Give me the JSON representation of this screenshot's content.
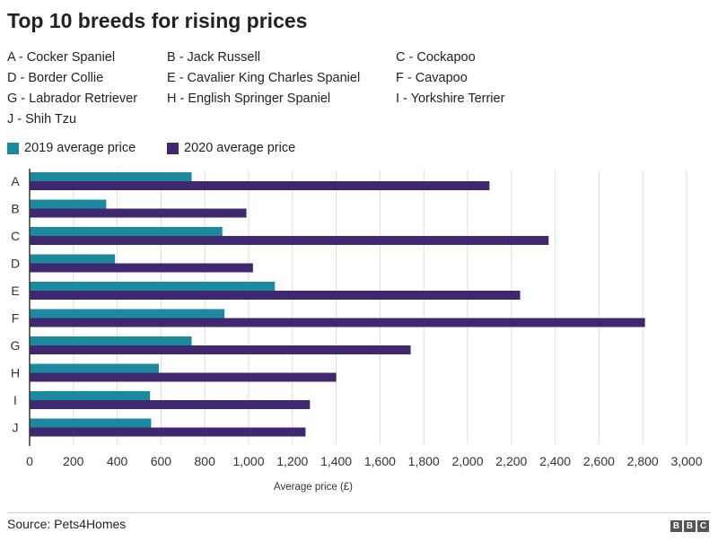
{
  "title": "Top 10 breeds for rising prices",
  "key": [
    "A - Cocker Spaniel",
    "B - Jack Russell",
    "C - Cockapoo",
    "D - Border Collie",
    "E - Cavalier King Charles Spaniel",
    "F - Cavapoo",
    "G - Labrador Retriever",
    "H - English Springer Spaniel",
    "I - Yorkshire Terrier",
    "J - Shih Tzu"
  ],
  "legend": [
    "2019 average price",
    "2020 average price"
  ],
  "colors": {
    "series_2019": "#1b8a9e",
    "series_2020": "#3f2870",
    "grid": "#dddddd",
    "axis": "#333333"
  },
  "source": "Source: Pets4Homes",
  "logo": [
    "B",
    "B",
    "C"
  ],
  "chart_data": {
    "type": "bar",
    "orientation": "horizontal",
    "categories": [
      "A",
      "B",
      "C",
      "D",
      "E",
      "F",
      "G",
      "H",
      "I",
      "J"
    ],
    "series": [
      {
        "name": "2019 average price",
        "values": [
          740,
          350,
          880,
          390,
          1120,
          890,
          740,
          590,
          550,
          555
        ]
      },
      {
        "name": "2020 average price",
        "values": [
          2100,
          990,
          2370,
          1020,
          2240,
          2810,
          1740,
          1400,
          1280,
          1260
        ]
      }
    ],
    "xlabel": "Average price (£)",
    "ylabel": "",
    "xlim": [
      0,
      3000
    ],
    "xticks": [
      "0",
      "200",
      "400",
      "600",
      "800",
      "1,000",
      "1,200",
      "1,400",
      "1,600",
      "1,800",
      "2,000",
      "2,200",
      "2,400",
      "2,600",
      "2,800",
      "3,000"
    ],
    "grid": true,
    "legend_position": "top-left"
  }
}
